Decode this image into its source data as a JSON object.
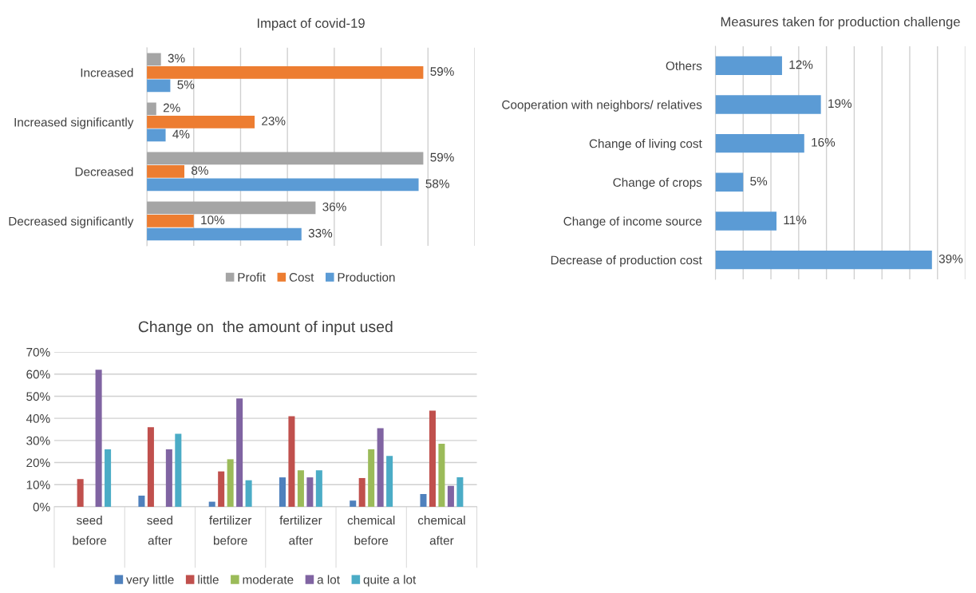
{
  "chart_data": [
    {
      "type": "bar",
      "orientation": "horizontal",
      "title": "Impact of covid-19",
      "categories": [
        "Increased",
        "Increased significantly",
        "Decreased",
        "Decreased significantly"
      ],
      "series": [
        {
          "name": "Profit",
          "color": "#a5a5a5",
          "values": [
            3,
            2,
            59,
            36
          ],
          "value_labels": [
            "3%",
            "2%",
            "59%",
            "36%"
          ]
        },
        {
          "name": "Cost",
          "color": "#ed7d31",
          "values": [
            59,
            23,
            8,
            10
          ],
          "value_labels": [
            "59%",
            "23%",
            "8%",
            "10%"
          ]
        },
        {
          "name": "Production",
          "color": "#5b9bd5",
          "values": [
            5,
            4,
            58,
            33
          ],
          "value_labels": [
            "5%",
            "4%",
            "58%",
            "33%"
          ]
        }
      ],
      "xlim": [
        0,
        70
      ],
      "xticks": [
        {
          "value": 0,
          "label": null
        },
        {
          "value": 10,
          "label": null
        },
        {
          "value": 20,
          "label": null
        },
        {
          "value": 30,
          "label": null
        },
        {
          "value": 40,
          "label": null
        },
        {
          "value": 50,
          "label": null
        },
        {
          "value": 60,
          "label": null
        },
        {
          "value": 70,
          "label": null
        }
      ],
      "grid": "x",
      "legend": "bottom",
      "tick_labels": "y"
    },
    {
      "type": "bar",
      "orientation": "horizontal",
      "title": "Measures taken for production challenge",
      "categories": [
        "Others",
        "Cooperation with neighbors/ relatives",
        "Change of living cost",
        "Change of crops",
        "Change of income source",
        "Decrease of production cost"
      ],
      "series": [
        {
          "color": "#5b9bd5",
          "values": [
            12,
            19,
            16,
            5,
            11,
            39
          ],
          "value_labels": [
            "12%",
            "19%",
            "16%",
            "5%",
            "11%",
            "39%"
          ]
        }
      ],
      "xlim": [
        0,
        45
      ],
      "xticks": [
        {
          "value": 0,
          "label": null
        },
        {
          "value": 5,
          "label": null
        },
        {
          "value": 10,
          "label": null
        },
        {
          "value": 15,
          "label": null
        },
        {
          "value": 20,
          "label": null
        },
        {
          "value": 25,
          "label": null
        },
        {
          "value": 30,
          "label": null
        },
        {
          "value": 35,
          "label": null
        },
        {
          "value": 40,
          "label": null
        },
        {
          "value": 45,
          "label": null
        }
      ],
      "grid": "x",
      "tick_labels": "y"
    },
    {
      "type": "bar",
      "title": "Change on  the amount of input used",
      "categories": [
        "seed\nbefore",
        "seed\nafter",
        "fertilizer\nbefore",
        "fertilizer\nafter",
        "chemical\nbefore",
        "chemical\nafter"
      ],
      "series": [
        {
          "name": "very little",
          "color": "#4f81bd",
          "values": [
            0,
            5,
            2.3,
            13.3,
            2.8,
            5.8
          ]
        },
        {
          "name": "little",
          "color": "#c0504d",
          "values": [
            12.5,
            36,
            16,
            41,
            13,
            43.5
          ]
        },
        {
          "name": "moderate",
          "color": "#9bbb59",
          "values": [
            0,
            0,
            21.5,
            16.5,
            26,
            28.5
          ]
        },
        {
          "name": "a lot",
          "color": "#8064a2",
          "values": [
            62,
            26,
            49,
            13.3,
            35.5,
            9.5
          ]
        },
        {
          "name": "quite a lot",
          "color": "#4bacc6",
          "values": [
            26,
            33,
            12,
            16.5,
            23,
            13.3
          ]
        }
      ],
      "ylim": [
        0,
        70
      ],
      "yticks": [
        {
          "value": 0,
          "label": "0%"
        },
        {
          "value": 10,
          "label": "10%"
        },
        {
          "value": 20,
          "label": "20%"
        },
        {
          "value": 30,
          "label": "30%"
        },
        {
          "value": 40,
          "label": "40%"
        },
        {
          "value": 50,
          "label": "50%"
        },
        {
          "value": 60,
          "label": "60%"
        },
        {
          "value": 70,
          "label": "70%"
        }
      ],
      "grid": "y",
      "legend": "bottom"
    }
  ]
}
